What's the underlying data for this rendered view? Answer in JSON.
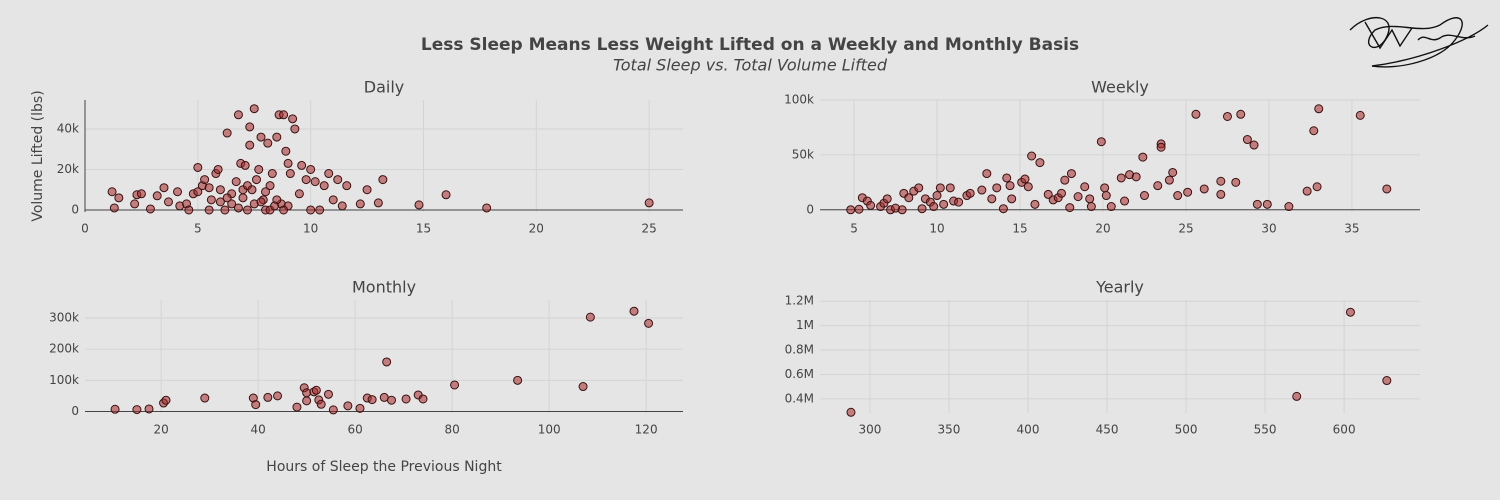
{
  "title": "Less Sleep Means Less Weight Lifted on a Weekly and Monthly Basis",
  "subtitle": "Total Sleep vs. Total Volume Lifted",
  "chart_data": [
    {
      "type": "scatter",
      "title": "Daily",
      "ylabel": "Volume Lifted (lbs)",
      "color": "#a52a2a",
      "grid": true,
      "xlim": [
        0,
        26.5
      ],
      "ylim": [
        -1000,
        54300
      ],
      "xticks": [
        0,
        5,
        10,
        15,
        20,
        25
      ],
      "yticks": [
        0,
        {
          "value": 20000,
          "label": "20k"
        },
        {
          "value": 40000,
          "label": "40k"
        }
      ],
      "x": [
        1.2,
        1.3,
        1.5,
        2.2,
        2.3,
        2.5,
        2.9,
        3.2,
        3.5,
        3.7,
        4.1,
        4.2,
        4.5,
        4.6,
        4.8,
        5,
        5,
        5.2,
        5.3,
        5.5,
        5.6,
        5.8,
        5.9,
        6,
        6.2,
        6.3,
        6.5,
        6.7,
        6.8,
        6.9,
        7,
        7.1,
        7.2,
        7.3,
        7.3,
        7.5,
        7.6,
        7.7,
        7.8,
        7.9,
        8,
        8.1,
        8.2,
        8.3,
        8.5,
        8.6,
        8.7,
        8.8,
        8.9,
        9,
        9.1,
        9.2,
        9.3,
        9.5,
        9.6,
        9.8,
        10,
        10,
        10.2,
        10.4,
        10.6,
        10.8,
        11,
        11.2,
        11.4,
        11.6,
        12.2,
        12.5,
        13,
        13.2,
        14.8,
        16,
        17.8,
        25,
        6.5,
        7,
        7.5,
        8,
        8.5,
        6,
        7.2,
        8.2,
        9,
        5.5,
        6.8,
        7.8,
        8.8,
        6.3,
        7.4,
        8.4
      ],
      "values": [
        9000,
        1000,
        6000,
        3000,
        7500,
        8000,
        500,
        7000,
        11000,
        4000,
        9000,
        2000,
        3000,
        0,
        8000,
        9000,
        21000,
        12000,
        15000,
        0,
        5000,
        18000,
        20000,
        10000,
        0,
        38000,
        3000,
        14000,
        47000,
        23000,
        10000,
        22000,
        0,
        32000,
        41000,
        50000,
        15000,
        20000,
        36000,
        5000,
        0,
        33000,
        12000,
        18000,
        36000,
        47000,
        3000,
        47000,
        29000,
        23000,
        18000,
        45000,
        40000,
        8000,
        22000,
        15000,
        20000,
        0,
        14000,
        0,
        12000,
        18000,
        5000,
        15000,
        2000,
        12000,
        3000,
        10000,
        3500,
        15000,
        2500,
        7500,
        1000,
        3500,
        8000,
        6000,
        3000,
        9000,
        5000,
        4000,
        12000,
        0,
        2000,
        11000,
        1000,
        4000,
        0,
        6000,
        10000,
        2000
      ]
    },
    {
      "type": "scatter",
      "title": "Weekly",
      "color": "#a52a2a",
      "grid": true,
      "xlim": [
        2.95,
        39.1
      ],
      "ylim": [
        -2000,
        100000
      ],
      "xticks": [
        5,
        10,
        15,
        20,
        25,
        30,
        35
      ],
      "yticks": [
        0,
        {
          "value": 50000,
          "label": "50k"
        },
        {
          "value": 100000,
          "label": "100k"
        }
      ],
      "x": [
        4.8,
        5.3,
        5.5,
        5.8,
        6,
        6.6,
        6.8,
        7,
        7.2,
        7.5,
        7.9,
        8,
        8.3,
        8.6,
        8.9,
        9.1,
        9.3,
        9.6,
        9.8,
        10,
        10.2,
        10.4,
        10.8,
        11,
        11.3,
        11.8,
        12,
        12.7,
        13,
        13.3,
        13.6,
        14,
        14.2,
        14.4,
        14.5,
        15.1,
        15.3,
        15.5,
        15.7,
        15.9,
        16.2,
        16.7,
        17,
        17.3,
        17.5,
        17.7,
        18,
        18.1,
        18.5,
        18.9,
        19.2,
        19.3,
        19.9,
        20.1,
        20.2,
        20.5,
        21.1,
        21.3,
        21.6,
        22,
        22.4,
        22.5,
        23.3,
        23.5,
        23.5,
        24,
        24.2,
        24.5,
        25.1,
        25.6,
        26.1,
        27.1,
        27.1,
        27.5,
        28,
        28.3,
        28.7,
        29.1,
        29.3,
        29.9,
        31.2,
        32.3,
        32.7,
        33,
        32.9,
        35.5,
        37.1
      ],
      "values": [
        0,
        500,
        11000,
        8000,
        4000,
        3000,
        6000,
        10000,
        0,
        1500,
        0,
        15000,
        11000,
        17000,
        20000,
        1000,
        10000,
        7000,
        3000,
        13000,
        20000,
        5000,
        20000,
        8000,
        7000,
        13000,
        15000,
        18000,
        33000,
        10000,
        20000,
        1000,
        29000,
        22000,
        10000,
        25000,
        28000,
        21000,
        49000,
        5000,
        43000,
        14000,
        9000,
        11000,
        15000,
        27000,
        2000,
        33000,
        12000,
        21000,
        10000,
        3000,
        62000,
        20000,
        13000,
        3000,
        29000,
        8000,
        32000,
        30000,
        48000,
        13000,
        22000,
        60000,
        57000,
        27000,
        34000,
        13000,
        16000,
        87000,
        19000,
        26000,
        14000,
        85000,
        25000,
        87000,
        64000,
        59000,
        5000,
        5000,
        3000,
        17000,
        72000,
        92000,
        21000,
        86000,
        19000
      ]
    },
    {
      "type": "scatter",
      "title": "Monthly",
      "xlabel": "Hours of Sleep the Previous Night",
      "color": "#a52a2a",
      "grid": true,
      "xlim": [
        4.3,
        127.6
      ],
      "ylim": [
        -5000,
        358000
      ],
      "xticks": [
        20,
        40,
        60,
        80,
        100,
        120
      ],
      "yticks": [
        0,
        {
          "value": 100000,
          "label": "100k"
        },
        {
          "value": 200000,
          "label": "200k"
        },
        {
          "value": 300000,
          "label": "300k"
        }
      ],
      "x": [
        10.5,
        15,
        17.5,
        20.5,
        21,
        29,
        39,
        39.5,
        42,
        44,
        48,
        49.5,
        50,
        50,
        51.5,
        52,
        52.5,
        53,
        54.5,
        55.5,
        58.5,
        61,
        62.5,
        63.5,
        66,
        66.5,
        67.5,
        70.5,
        73,
        74,
        80.5,
        93.5,
        107,
        108.5,
        117.5,
        120.5
      ],
      "values": [
        7000,
        6000,
        8000,
        27000,
        36000,
        43000,
        43000,
        22000,
        45000,
        50000,
        14000,
        76000,
        60000,
        34000,
        63000,
        68000,
        37000,
        23000,
        55000,
        5000,
        18000,
        10000,
        43000,
        38000,
        45000,
        159000,
        36000,
        40000,
        53000,
        40000,
        85000,
        100000,
        80000,
        303000,
        322000,
        283000
      ]
    },
    {
      "type": "scatter",
      "title": "Yearly",
      "color": "#a52a2a",
      "grid": true,
      "xlim": [
        268.4,
        648
      ],
      "ylim": [
        284000,
        1210000
      ],
      "xticks": [
        300,
        350,
        400,
        450,
        500,
        550,
        600
      ],
      "yticks": [
        {
          "value": 400000,
          "label": "0.4M"
        },
        {
          "value": 600000,
          "label": "0.6M"
        },
        {
          "value": 800000,
          "label": "0.8M"
        },
        {
          "value": 1000000,
          "label": "1M"
        },
        {
          "value": 1200000,
          "label": "1.2M"
        }
      ],
      "x": [
        288,
        570,
        604,
        627
      ],
      "values": [
        290000,
        420000,
        1110000,
        550000
      ]
    }
  ]
}
